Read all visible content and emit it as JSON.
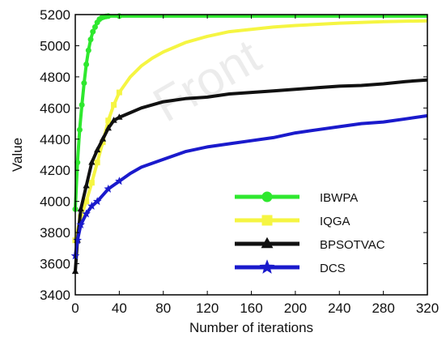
{
  "chart_data": {
    "type": "line",
    "xlabel": "Number of iterations",
    "ylabel": "Value",
    "xlim": [
      0,
      320
    ],
    "ylim": [
      3400,
      5200
    ],
    "xticks": [
      0,
      40,
      80,
      120,
      160,
      200,
      240,
      280,
      320
    ],
    "yticks": [
      3400,
      3600,
      3800,
      4000,
      4200,
      4400,
      4600,
      4800,
      5000,
      5200
    ],
    "grid": false,
    "legend_position": "lower-right",
    "watermark": "Front",
    "series": [
      {
        "name": "IBWPA",
        "color": "#2ee82e",
        "marker": "circle",
        "x": [
          0,
          2,
          4,
          6,
          8,
          10,
          12,
          14,
          16,
          18,
          20,
          22,
          24,
          26,
          28,
          30,
          40,
          80,
          120,
          160,
          200,
          240,
          280,
          320
        ],
        "y": [
          3950,
          4250,
          4460,
          4620,
          4760,
          4880,
          4970,
          5040,
          5090,
          5120,
          5150,
          5170,
          5180,
          5185,
          5188,
          5190,
          5190,
          5190,
          5190,
          5190,
          5190,
          5190,
          5190,
          5190
        ]
      },
      {
        "name": "IQGA",
        "color": "#f5f542",
        "marker": "square",
        "x": [
          0,
          5,
          10,
          15,
          20,
          25,
          30,
          35,
          40,
          50,
          60,
          70,
          80,
          100,
          120,
          140,
          160,
          180,
          200,
          240,
          280,
          320
        ],
        "y": [
          3750,
          3900,
          4000,
          4120,
          4250,
          4380,
          4520,
          4620,
          4700,
          4800,
          4870,
          4920,
          4960,
          5020,
          5060,
          5090,
          5105,
          5120,
          5130,
          5145,
          5155,
          5160
        ]
      },
      {
        "name": "BPSOTVAC",
        "color": "#111111",
        "marker": "triangle",
        "x": [
          0,
          2,
          5,
          10,
          15,
          20,
          25,
          30,
          35,
          40,
          50,
          60,
          80,
          100,
          120,
          140,
          160,
          180,
          200,
          220,
          240,
          260,
          280,
          300,
          320
        ],
        "y": [
          3550,
          3750,
          3950,
          4100,
          4250,
          4330,
          4400,
          4470,
          4520,
          4540,
          4570,
          4600,
          4640,
          4660,
          4670,
          4690,
          4700,
          4710,
          4720,
          4730,
          4740,
          4745,
          4755,
          4770,
          4780
        ]
      },
      {
        "name": "DCS",
        "color": "#1a1acc",
        "marker": "star",
        "x": [
          0,
          2,
          5,
          10,
          15,
          20,
          30,
          40,
          50,
          60,
          80,
          100,
          120,
          140,
          160,
          180,
          200,
          220,
          240,
          260,
          280,
          300,
          320
        ],
        "y": [
          3650,
          3750,
          3850,
          3920,
          3970,
          4000,
          4080,
          4130,
          4180,
          4220,
          4270,
          4320,
          4350,
          4370,
          4390,
          4410,
          4440,
          4460,
          4480,
          4500,
          4510,
          4530,
          4550
        ]
      }
    ]
  }
}
